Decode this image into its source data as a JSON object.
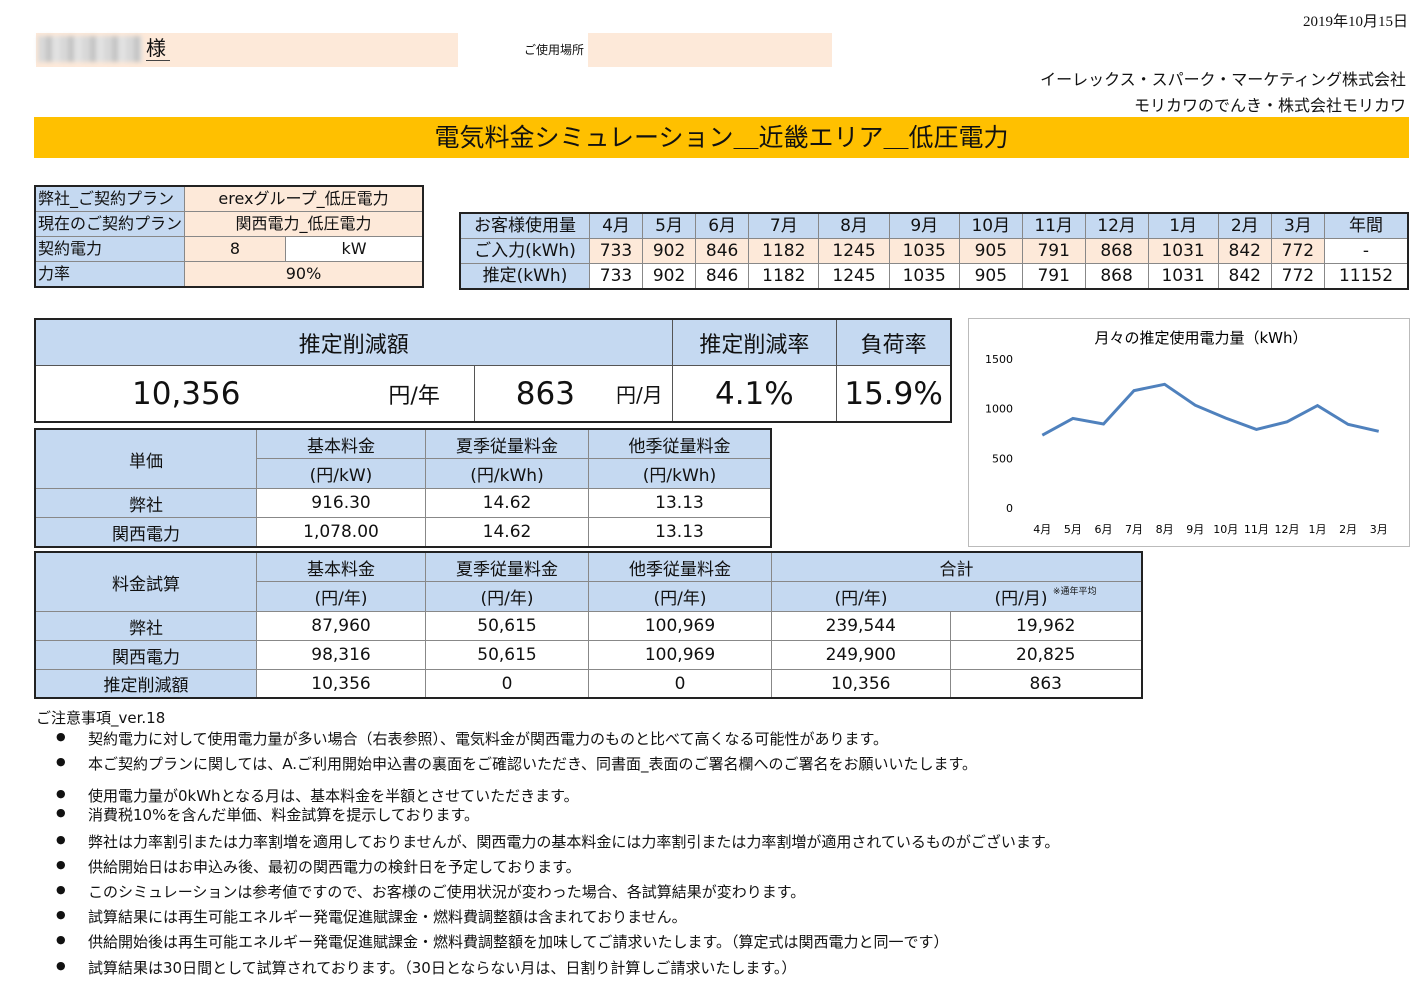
{
  "header": {
    "date": "2019年10月15日",
    "honorific": "様",
    "location_label": "ご使用場所",
    "company1": "イーレックス・スパーク・マーケティング株式会社",
    "company2": "モリカワのでんき・株式会社モリカワ",
    "title": "電気料金シミュレーション＿近畿エリア＿低圧電力"
  },
  "plan": {
    "rows": [
      {
        "label": "弊社_ご契約プラン",
        "value": "erexグループ_低圧電力"
      },
      {
        "label": "現在のご契約プラン",
        "value": "関西電力_低圧電力"
      }
    ],
    "contract_label": "契約電力",
    "contract_value": "8",
    "contract_unit": "kW",
    "pf_label": "力率",
    "pf_value": "90%"
  },
  "usage": {
    "header_label": "お客様使用量",
    "months": [
      "4月",
      "5月",
      "6月",
      "7月",
      "8月",
      "9月",
      "10月",
      "11月",
      "12月",
      "1月",
      "2月",
      "3月",
      "年間"
    ],
    "input_label": "ご入力(kWh)",
    "input": [
      "733",
      "902",
      "846",
      "1182",
      "1245",
      "1035",
      "905",
      "791",
      "868",
      "1031",
      "842",
      "772",
      "-"
    ],
    "est_label": "推定(kWh)",
    "est": [
      "733",
      "902",
      "846",
      "1182",
      "1245",
      "1035",
      "905",
      "791",
      "868",
      "1031",
      "842",
      "772",
      "11152"
    ]
  },
  "summary": {
    "h_reduction": "推定削減額",
    "h_rate": "推定削減率",
    "h_load": "負荷率",
    "annual": "10,356",
    "annual_unit": "円/年",
    "monthly": "863",
    "monthly_unit": "円/月",
    "rate": "4.1%",
    "load": "15.9%"
  },
  "price": {
    "corner": "単価",
    "headers": [
      {
        "name": "基本料金",
        "unit": "(円/kW)"
      },
      {
        "name": "夏季従量料金",
        "unit": "(円/kWh)"
      },
      {
        "name": "他季従量料金",
        "unit": "(円/kWh)"
      }
    ],
    "rows": [
      {
        "label": "弊社",
        "values": [
          "916.30",
          "14.62",
          "13.13"
        ]
      },
      {
        "label": "関西電力",
        "values": [
          "1,078.00",
          "14.62",
          "13.13"
        ]
      }
    ]
  },
  "fee": {
    "corner": "料金試算",
    "headers": [
      {
        "name": "基本料金",
        "unit": "(円/年)"
      },
      {
        "name": "夏季従量料金",
        "unit": "(円/年)"
      },
      {
        "name": "他季従量料金",
        "unit": "(円/年)"
      }
    ],
    "total_label": "合計",
    "total_year_unit": "(円/年)",
    "total_month_unit": "(円/月)",
    "total_note": "※通年平均",
    "rows": [
      {
        "label": "弊社",
        "values": [
          "87,960",
          "50,615",
          "100,969",
          "239,544",
          "19,962"
        ]
      },
      {
        "label": "関西電力",
        "values": [
          "98,316",
          "50,615",
          "100,969",
          "249,900",
          "20,825"
        ]
      },
      {
        "label": "推定削減額",
        "values": [
          "10,356",
          "0",
          "0",
          "10,356",
          "863"
        ]
      }
    ]
  },
  "chart_data": {
    "type": "line",
    "title": "月々の推定使用電力量（kWh）",
    "categories": [
      "4月",
      "5月",
      "6月",
      "7月",
      "8月",
      "9月",
      "10月",
      "11月",
      "12月",
      "1月",
      "2月",
      "3月"
    ],
    "values": [
      733,
      902,
      846,
      1182,
      1245,
      1035,
      905,
      791,
      868,
      1031,
      842,
      772
    ],
    "ylim": [
      0,
      1500
    ],
    "yticks": [
      "0",
      "500",
      "1000",
      "1500"
    ],
    "line_color": "#4f81bd",
    "grid": false
  },
  "notes": {
    "title": "ご注意事項_ver.18",
    "items": [
      "契約電力に対して使用電力量が多い場合（右表参照）、電気料金が関西電力のものと比べて高くなる可能性があります。",
      "本ご契約プランに関しては、A.ご利用開始申込書の裏面をご確認いただき、同書面_表面のご署名欄へのご署名をお願いいたします。",
      "使用電力量が0kWhとなる月は、基本料金を半額とさせていただきます。",
      "消費税10%を含んだ単価、料金試算を提示しております。",
      "弊社は力率割引または力率割増を適用しておりませんが、関西電力の基本料金には力率割引または力率割増が適用されているものがございます。",
      "供給開始日はお申込み後、最初の関西電力の検針日を予定しております。",
      "このシミュレーションは参考値ですので、お客様のご使用状況が変わった場合、各試算結果が変わります。",
      "試算結果には再生可能エネルギー発電促進賦課金・燃料費調整額は含まれておりません。",
      "供給開始後は再生可能エネルギー発電促進賦課金・燃料費調整額を加味してご請求いたします。（算定式は関西電力と同一です）",
      "試算結果は30日間として試算されております。（30日とならない月は、日割り計算しご請求いたします。）"
    ]
  }
}
